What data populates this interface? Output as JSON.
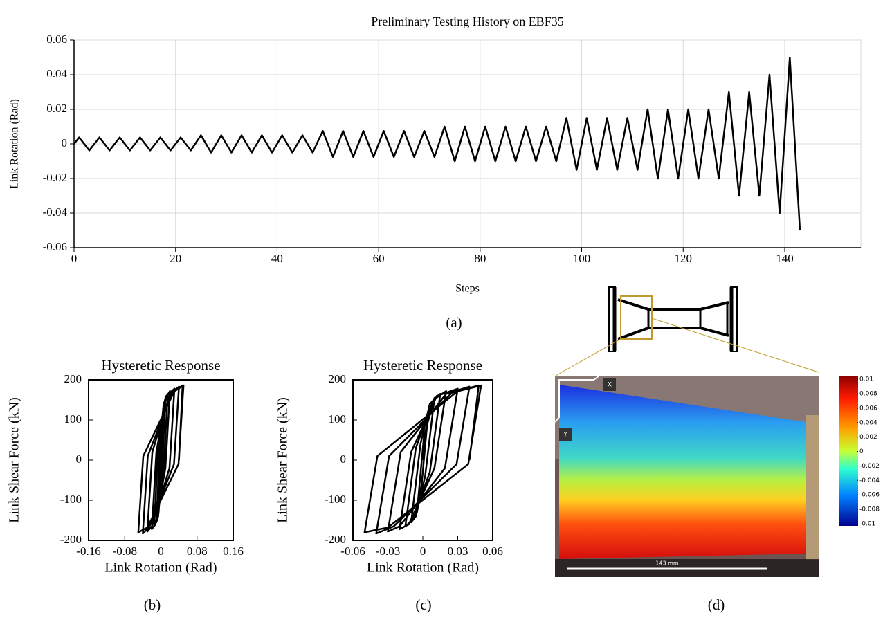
{
  "chart_data": [
    {
      "type": "line",
      "title": "Preliminary Testing History on EBF35",
      "x_label": "Steps",
      "y_label": "Link Rotation (Rad)",
      "caption": "(a)",
      "color": "#000000",
      "grid": true,
      "x": [
        0,
        1,
        3,
        5,
        7,
        9,
        11,
        13,
        15,
        17,
        19,
        21,
        23,
        25,
        27,
        29,
        31,
        33,
        35,
        37,
        39,
        41,
        43,
        45,
        47,
        49,
        51,
        53,
        55,
        57,
        59,
        61,
        63,
        65,
        67,
        69,
        71,
        73,
        75,
        77,
        79,
        81,
        83,
        85,
        87,
        89,
        91,
        93,
        95,
        97,
        99,
        101,
        103,
        105,
        107,
        109,
        111,
        113,
        115,
        117,
        119,
        121,
        123,
        125,
        127,
        129,
        131,
        133,
        135,
        137,
        139,
        141,
        143
      ],
      "values": [
        0,
        0.00375,
        -0.00375,
        0.00375,
        -0.00375,
        0.00375,
        -0.00375,
        0.00375,
        -0.00375,
        0.00375,
        -0.00375,
        0.00375,
        -0.00375,
        0.005,
        -0.005,
        0.005,
        -0.005,
        0.005,
        -0.005,
        0.005,
        -0.005,
        0.005,
        -0.005,
        0.005,
        -0.005,
        0.0075,
        -0.0075,
        0.0075,
        -0.0075,
        0.0075,
        -0.0075,
        0.0075,
        -0.0075,
        0.0075,
        -0.0075,
        0.0075,
        -0.0075,
        0.01,
        -0.01,
        0.01,
        -0.01,
        0.01,
        -0.01,
        0.01,
        -0.01,
        0.01,
        -0.01,
        0.01,
        -0.01,
        0.015,
        -0.015,
        0.015,
        -0.015,
        0.015,
        -0.015,
        0.015,
        -0.015,
        0.02,
        -0.02,
        0.02,
        -0.02,
        0.02,
        -0.02,
        0.02,
        -0.02,
        0.03,
        -0.03,
        0.03,
        -0.03,
        0.04,
        -0.04,
        0.05,
        -0.05
      ],
      "xlim": [
        0,
        155
      ],
      "xticks": [
        0,
        20,
        40,
        60,
        80,
        100,
        120,
        140
      ],
      "ylim": [
        -0.06,
        0.06
      ],
      "yticks": [
        -0.06,
        -0.04,
        -0.02,
        0,
        0.02,
        0.04,
        0.06
      ]
    },
    {
      "type": "line",
      "title": "Hysteretic Response",
      "x_label": "Link Rotation (Rad)",
      "y_label": "Link Shear Force (kN)",
      "caption": "(b)",
      "color": "#000000",
      "grid": false,
      "x": [
        0,
        0.005,
        -0.001,
        -0.005,
        0.001,
        0.01,
        0.002,
        -0.006,
        -0.01,
        -0.002,
        0.006,
        0.015,
        0.006,
        -0.009,
        -0.015,
        -0.006,
        0.009,
        0.02,
        0.01,
        -0.012,
        -0.02,
        -0.01,
        0.012,
        0.03,
        0.019,
        -0.02,
        -0.03,
        -0.019,
        0.02,
        0.04,
        0.029,
        -0.025,
        -0.04,
        -0.029,
        0.025,
        0.05,
        0.039,
        -0.03,
        -0.05,
        -0.039,
        0.03,
        0.048,
        0.04
      ],
      "values": [
        0,
        130,
        -60,
        -130,
        60,
        155,
        -40,
        -140,
        -155,
        40,
        140,
        165,
        -30,
        -150,
        -165,
        30,
        150,
        172,
        -20,
        -160,
        -172,
        20,
        160,
        178,
        -20,
        -165,
        -178,
        20,
        165,
        183,
        -10,
        -165,
        -183,
        10,
        168,
        186,
        -10,
        -168,
        -180,
        10,
        172,
        186,
        0
      ],
      "xlim": [
        -0.16,
        0.16
      ],
      "xticks": [
        -0.16,
        -0.08,
        0,
        0.08,
        0.16
      ],
      "ylim": [
        -200,
        200
      ],
      "yticks": [
        -200,
        -100,
        0,
        100,
        200
      ]
    },
    {
      "type": "line",
      "title": "Hysteretic Response",
      "x_label": "Link Rotation (Rad)",
      "y_label": "Link Shear Force (kN)",
      "caption": "(c)",
      "color": "#000000",
      "grid": false,
      "x": [
        0,
        0.005,
        -0.001,
        -0.005,
        0.001,
        0.01,
        0.002,
        -0.006,
        -0.01,
        -0.002,
        0.006,
        0.015,
        0.006,
        -0.009,
        -0.015,
        -0.006,
        0.009,
        0.02,
        0.01,
        -0.012,
        -0.02,
        -0.01,
        0.012,
        0.03,
        0.019,
        -0.02,
        -0.03,
        -0.019,
        0.02,
        0.04,
        0.029,
        -0.025,
        -0.04,
        -0.029,
        0.025,
        0.05,
        0.039,
        -0.03,
        -0.05,
        -0.039,
        0.03,
        0.048,
        0.04
      ],
      "values": [
        0,
        130,
        -60,
        -130,
        60,
        155,
        -40,
        -140,
        -155,
        40,
        140,
        165,
        -30,
        -150,
        -165,
        30,
        150,
        172,
        -20,
        -160,
        -172,
        20,
        160,
        178,
        -20,
        -165,
        -178,
        20,
        165,
        183,
        -10,
        -165,
        -183,
        10,
        168,
        186,
        -10,
        -168,
        -180,
        10,
        172,
        186,
        0
      ],
      "xlim": [
        -0.06,
        0.06
      ],
      "xticks": [
        -0.06,
        -0.03,
        0,
        0.03,
        0.06
      ],
      "ylim": [
        -200,
        200
      ],
      "yticks": [
        -200,
        -100,
        0,
        100,
        200
      ]
    },
    {
      "type": "heatmap",
      "caption": "(d)",
      "axis_labels": [
        "X",
        "Y"
      ],
      "scale_bar": "143 mm",
      "colorbar_lim": [
        -0.0103,
        0.0105
      ],
      "colorbar_ticks": [
        0.01,
        0.008,
        0.006,
        0.004,
        0.002,
        0,
        -0.002,
        -0.004,
        -0.006,
        -0.008,
        -0.01
      ]
    }
  ]
}
